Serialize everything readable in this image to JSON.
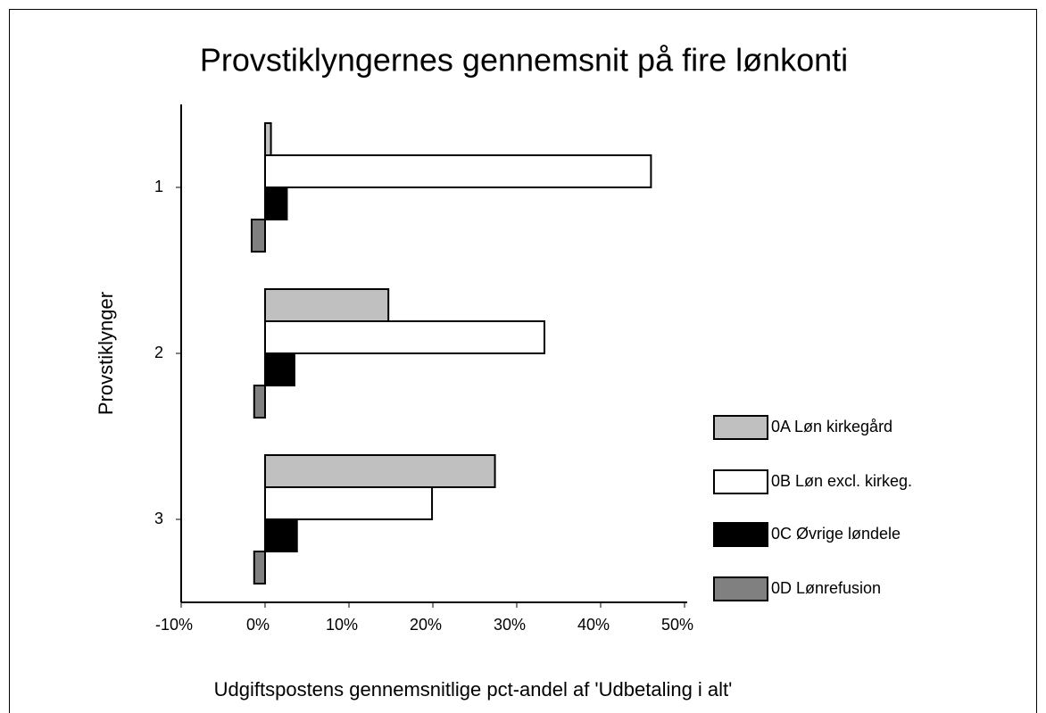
{
  "chart_data": {
    "type": "bar",
    "orientation": "horizontal",
    "title": "Provstiklyngernes gennemsnit på fire lønkonti",
    "x_label": "Udgiftspostens gennemsnitlige pct-andel af 'Udbetaling i alt'",
    "y_label": "Provstiklynger",
    "categories": [
      "1",
      "2",
      "3"
    ],
    "series": [
      {
        "name": "0A Løn kirkegård",
        "color": "#c0c0c0",
        "values": [
          0.7,
          14.7,
          27.4
        ]
      },
      {
        "name": "0B Løn excl. kirkeg.",
        "color": "#ffffff",
        "values": [
          46.0,
          33.3,
          19.9
        ]
      },
      {
        "name": "0C Øvrige løndele",
        "color": "#000000",
        "values": [
          2.6,
          3.5,
          3.8
        ]
      },
      {
        "name": "0D Lønrefusion",
        "color": "#808080",
        "values": [
          -1.6,
          -1.3,
          -1.3
        ]
      }
    ],
    "xlim": [
      -10,
      50
    ],
    "xticks": [
      {
        "value": -10,
        "label": "-10%"
      },
      {
        "value": 0,
        "label": "0%"
      },
      {
        "value": 10,
        "label": "10%"
      },
      {
        "value": 20,
        "label": "20%"
      },
      {
        "value": 30,
        "label": "30%"
      },
      {
        "value": 40,
        "label": "40%"
      },
      {
        "value": 50,
        "label": "50%"
      }
    ],
    "legend": "right"
  }
}
